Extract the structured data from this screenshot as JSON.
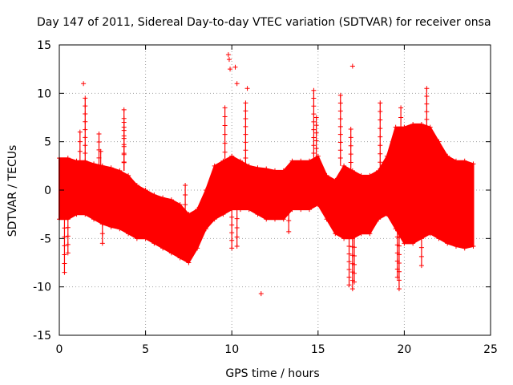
{
  "chart_data": {
    "type": "scatter",
    "title": "Day 147 of 2011, Sidereal Day-to-day VTEC variation (SDTVAR) for receiver onsa",
    "xlabel": "GPS time / hours",
    "ylabel": "SDTVAR / TECUs",
    "xlim": [
      0,
      25
    ],
    "ylim": [
      -15,
      15
    ],
    "xticks": [
      0,
      5,
      10,
      15,
      20,
      25
    ],
    "yticks": [
      -15,
      -10,
      -5,
      0,
      5,
      10,
      15
    ],
    "grid": true,
    "marker": "+",
    "color": "#ff0000",
    "series": [
      {
        "name": "SDTVAR",
        "envelope": {
          "x": [
            0.0,
            0.5,
            1.0,
            1.5,
            2.0,
            2.5,
            3.0,
            3.5,
            4.0,
            4.5,
            5.0,
            5.5,
            6.0,
            6.5,
            7.0,
            7.5,
            8.0,
            8.5,
            9.0,
            9.5,
            10.0,
            10.5,
            11.0,
            11.5,
            12.0,
            12.5,
            13.0,
            13.5,
            14.0,
            14.5,
            15.0,
            15.5,
            16.0,
            16.5,
            17.0,
            17.5,
            18.0,
            18.5,
            19.0,
            19.5,
            20.0,
            20.5,
            21.0,
            21.5,
            22.0,
            22.5,
            23.0,
            23.5,
            24.0
          ],
          "upper": [
            3.3,
            3.3,
            3.0,
            3.0,
            2.7,
            2.5,
            2.3,
            2.0,
            1.5,
            0.5,
            0.0,
            -0.5,
            -0.8,
            -1.0,
            -1.5,
            -2.5,
            -2.0,
            0.0,
            2.5,
            3.0,
            3.5,
            3.0,
            2.5,
            2.3,
            2.2,
            2.0,
            2.0,
            3.0,
            3.0,
            3.0,
            3.5,
            1.5,
            1.0,
            2.5,
            2.0,
            1.5,
            1.5,
            2.0,
            3.5,
            6.5,
            6.5,
            6.8,
            6.8,
            6.5,
            5.0,
            3.5,
            3.0,
            3.0,
            2.7
          ],
          "lower": [
            -3.0,
            -3.0,
            -2.5,
            -2.5,
            -3.0,
            -3.5,
            -3.8,
            -4.0,
            -4.5,
            -5.0,
            -5.0,
            -5.5,
            -6.0,
            -6.5,
            -7.0,
            -7.5,
            -6.0,
            -4.0,
            -3.0,
            -2.5,
            -2.0,
            -2.0,
            -2.0,
            -2.5,
            -3.0,
            -3.0,
            -3.0,
            -2.0,
            -2.0,
            -2.0,
            -1.5,
            -3.0,
            -4.5,
            -5.0,
            -5.0,
            -4.5,
            -4.5,
            -3.0,
            -2.5,
            -4.0,
            -5.5,
            -5.5,
            -5.0,
            -4.5,
            -5.0,
            -5.5,
            -5.8,
            -6.0,
            -5.8
          ]
        },
        "outliers": [
          {
            "x": 0.3,
            "y": -8.5
          },
          {
            "x": 0.5,
            "y": -6.5
          },
          {
            "x": 1.4,
            "y": 11.0
          },
          {
            "x": 1.5,
            "y": 9.5
          },
          {
            "x": 1.2,
            "y": 6.0
          },
          {
            "x": 2.3,
            "y": 5.8
          },
          {
            "x": 2.5,
            "y": -5.5
          },
          {
            "x": 2.4,
            "y": 4.0
          },
          {
            "x": 3.75,
            "y": 8.3
          },
          {
            "x": 3.75,
            "y": 7.0
          },
          {
            "x": 7.3,
            "y": -6.0
          },
          {
            "x": 7.3,
            "y": 0.5
          },
          {
            "x": 9.6,
            "y": 8.5
          },
          {
            "x": 9.8,
            "y": 14.0
          },
          {
            "x": 9.85,
            "y": 13.5
          },
          {
            "x": 9.9,
            "y": 12.5
          },
          {
            "x": 10.2,
            "y": 12.7
          },
          {
            "x": 10.3,
            "y": 11.0
          },
          {
            "x": 10.9,
            "y": 10.5
          },
          {
            "x": 10.8,
            "y": 9.0
          },
          {
            "x": 10.0,
            "y": -6.0
          },
          {
            "x": 10.3,
            "y": -5.8
          },
          {
            "x": 11.7,
            "y": -10.7
          },
          {
            "x": 13.3,
            "y": -4.3
          },
          {
            "x": 14.75,
            "y": 10.3
          },
          {
            "x": 14.9,
            "y": 7.5
          },
          {
            "x": 16.3,
            "y": 9.8
          },
          {
            "x": 16.8,
            "y": -9.8
          },
          {
            "x": 17.0,
            "y": -10.2
          },
          {
            "x": 17.1,
            "y": -9.5
          },
          {
            "x": 17.0,
            "y": 12.8
          },
          {
            "x": 16.9,
            "y": 6.3
          },
          {
            "x": 18.6,
            "y": 9.0
          },
          {
            "x": 19.7,
            "y": -10.2
          },
          {
            "x": 19.6,
            "y": -9.0
          },
          {
            "x": 19.8,
            "y": 8.5
          },
          {
            "x": 21.3,
            "y": 10.5
          },
          {
            "x": 21.0,
            "y": -7.8
          }
        ]
      }
    ]
  }
}
